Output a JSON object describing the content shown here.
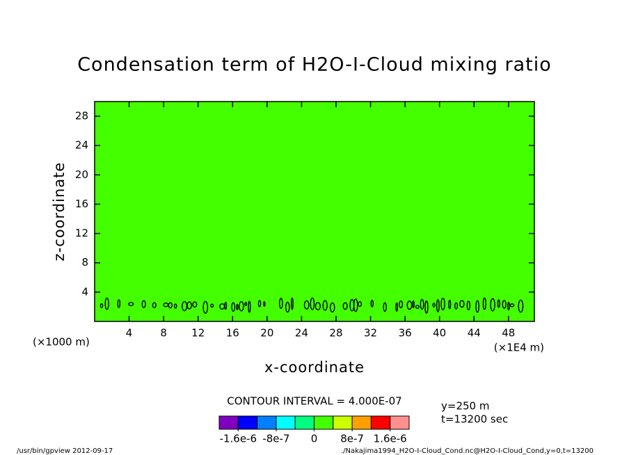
{
  "chart_data": {
    "type": "contour",
    "title": "Condensation term of H2O-I-Cloud mixing ratio",
    "x_label": "x-coordinate",
    "y_label": "z-coordinate",
    "x_unit_left": "(×1000 m)",
    "x_unit_right": "(×1E4 m)",
    "xlim": [
      0,
      51
    ],
    "xticks": [
      4,
      8,
      12,
      16,
      20,
      24,
      28,
      32,
      36,
      40,
      44,
      48
    ],
    "ylim": [
      0,
      30
    ],
    "yticks": [
      4,
      8,
      12,
      16,
      20,
      24,
      28
    ],
    "field_color": "#44ff00",
    "contour_interval_label": "CONTOUR INTERVAL = 4.000E-07",
    "colorbar": {
      "lim": [
        -2e-06,
        2e-06
      ],
      "colors": [
        "#7f00bf",
        "#0000ff",
        "#0080ff",
        "#00ffff",
        "#00ff80",
        "#44ff00",
        "#ccff00",
        "#ffa000",
        "#ff0000",
        "#ff9090"
      ],
      "ticks": [
        {
          "value": -1.6e-06,
          "label": "-1.6e-6"
        },
        {
          "value": -8e-07,
          "label": "-8e-7"
        },
        0,
        {
          "value": 8e-07,
          "label": "8e-7"
        },
        {
          "value": 1.6e-06,
          "label": "1.6e-6"
        }
      ]
    },
    "info": [
      "y=250 m",
      "t=13200 sec"
    ],
    "footer_left": "/usr/bin/gpview  2012-09-17",
    "footer_right": "./Nakajima1994_H2O-I-Cloud_Cond.nc@H2O-I-Cloud_Cond,y=0,t=13200"
  }
}
